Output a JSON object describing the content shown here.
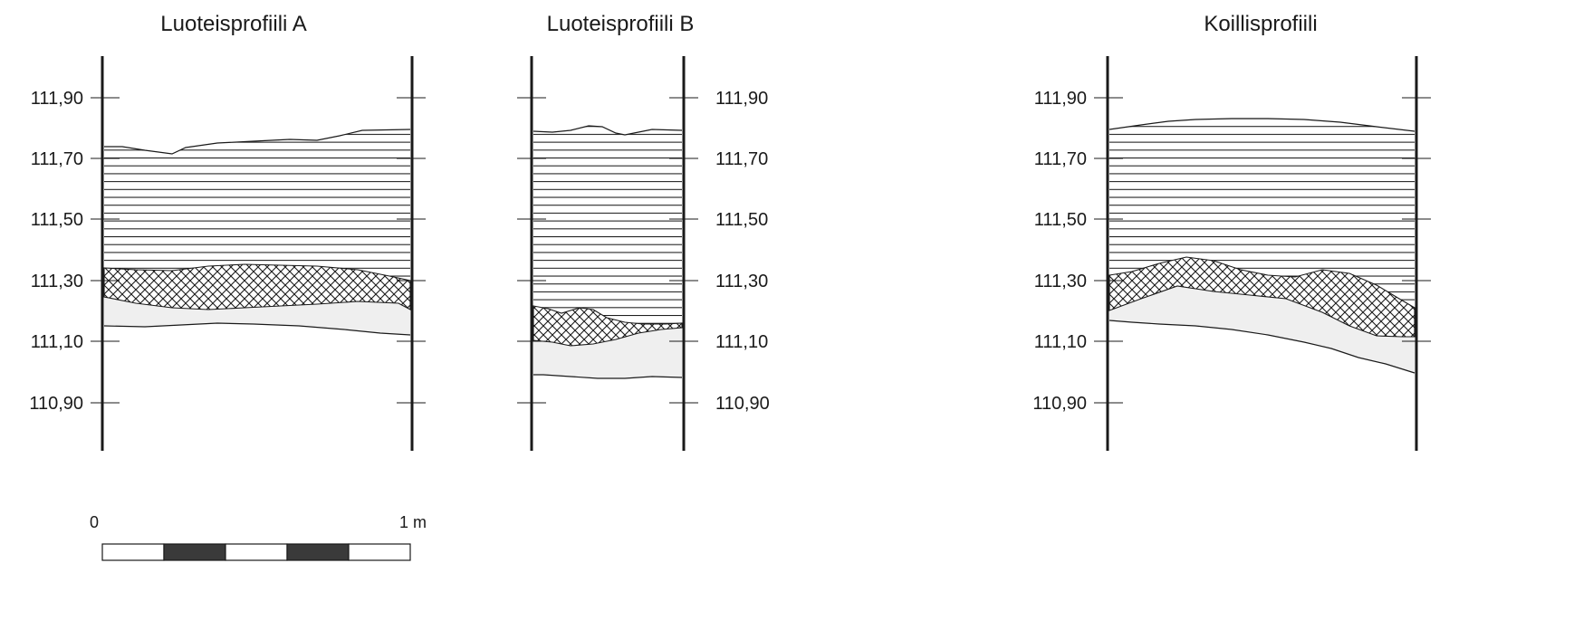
{
  "profiles": [
    {
      "id": "a",
      "title": "Luoteisprofiili A",
      "elevations": [
        "111,90",
        "111,70",
        "111,50",
        "111,30",
        "111,10",
        "110,90"
      ]
    },
    {
      "id": "b",
      "title": "Luoteisprofiili B",
      "elevations": [
        "111,90",
        "111,70",
        "111,50",
        "111,30",
        "111,10",
        "110,90"
      ]
    },
    {
      "id": "c",
      "title": "Koillisprofiili",
      "elevations": [
        "111,90",
        "111,70",
        "111,50",
        "111,30",
        "111,10",
        "110,90"
      ]
    }
  ],
  "scale_bar": {
    "start_label": "0",
    "end_label": "1 m"
  },
  "colors": {
    "line": "#1a1a1a",
    "fill_layer": "#efefef",
    "dark_block": "#3a3a3a"
  }
}
